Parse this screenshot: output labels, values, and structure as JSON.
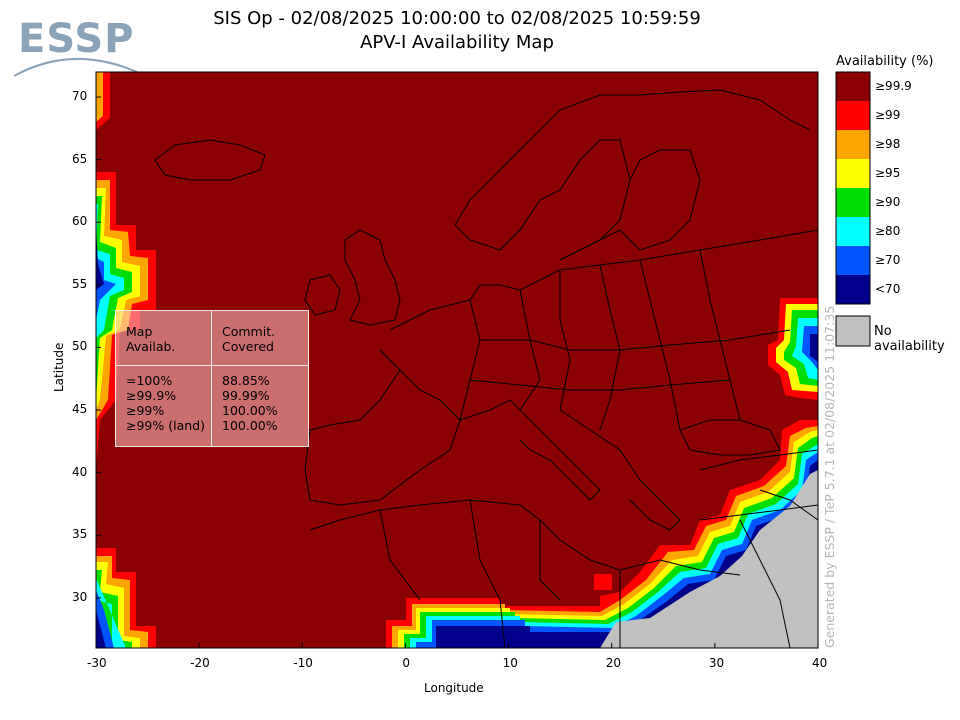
{
  "header": {
    "title_line1": "SIS Op - 02/08/2025 10:00:00 to 02/08/2025 10:59:59",
    "title_line2": "APV-I Availability Map",
    "logo_text": "ESSP"
  },
  "axes": {
    "xlabel": "Longitude",
    "ylabel": "Latitude",
    "x_ticks": [
      "-30",
      "-20",
      "-10",
      "0",
      "10",
      "20",
      "30",
      "40"
    ],
    "y_ticks": [
      "70",
      "65",
      "60",
      "55",
      "50",
      "45",
      "40",
      "35",
      "30"
    ],
    "xlim": [
      -30,
      40
    ],
    "ylim": [
      26,
      72
    ]
  },
  "legend": {
    "title": "Availability (%)",
    "items": [
      {
        "label": "≥99.9",
        "color": "#8b0000"
      },
      {
        "label": "≥99",
        "color": "#ff0000"
      },
      {
        "label": "≥98",
        "color": "#ffa500"
      },
      {
        "label": "≥95",
        "color": "#ffff00"
      },
      {
        "label": "≥90",
        "color": "#00dd00"
      },
      {
        "label": "≥80",
        "color": "#00ffff"
      },
      {
        "label": "≥70",
        "color": "#0055ff"
      },
      {
        "label": "<70",
        "color": "#00008b"
      }
    ],
    "no_availability": {
      "label": "No availability",
      "color": "#c0c0c0"
    }
  },
  "stats": {
    "header_left": "Map\nAvailab.",
    "header_right": "Commit.\nCovered",
    "rows_left": "=100%\n≥99.9%\n≥99%\n≥99% (land)",
    "rows_right": "88.85%\n99.99%\n100.00%\n100.00%"
  },
  "footer": {
    "generated": "Generated by ESSP / TeP 5.7.1 at 02/08/2025 11:07:35"
  }
}
